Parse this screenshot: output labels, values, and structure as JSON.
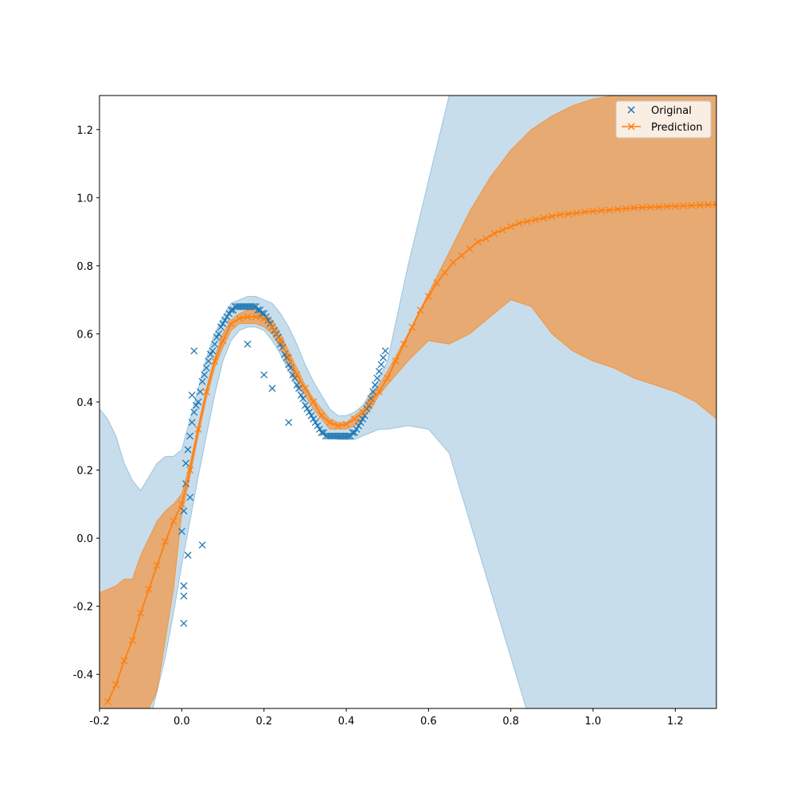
{
  "chart_data": {
    "type": "scatter",
    "title": "",
    "xlabel": "",
    "ylabel": "",
    "xlim": [
      -0.2,
      1.3
    ],
    "ylim": [
      -0.5,
      1.3
    ],
    "xticks": [
      -0.2,
      0.0,
      0.2,
      0.4,
      0.6,
      0.8,
      1.0,
      1.2
    ],
    "yticks": [
      -0.4,
      -0.2,
      0.0,
      0.2,
      0.4,
      0.6,
      0.8,
      1.0,
      1.2
    ],
    "grid": false,
    "legend_position": "top-right",
    "colors": {
      "original": "#1f77b4",
      "prediction": "#ff7f0e",
      "band_outer": "#1f77b4",
      "band_inner": "#ff7f0e"
    },
    "legend": [
      "Original",
      "Prediction"
    ],
    "series": [
      {
        "name": "Original",
        "kind": "scatter",
        "marker": "x",
        "x": [
          0.0,
          0.005,
          0.01,
          0.01,
          0.015,
          0.02,
          0.02,
          0.025,
          0.03,
          0.035,
          0.04,
          0.045,
          0.05,
          0.055,
          0.06,
          0.065,
          0.07,
          0.075,
          0.08,
          0.085,
          0.09,
          0.095,
          0.1,
          0.105,
          0.11,
          0.115,
          0.12,
          0.125,
          0.13,
          0.135,
          0.14,
          0.145,
          0.15,
          0.155,
          0.16,
          0.165,
          0.17,
          0.175,
          0.18,
          0.185,
          0.19,
          0.195,
          0.2,
          0.205,
          0.21,
          0.215,
          0.22,
          0.225,
          0.23,
          0.235,
          0.24,
          0.245,
          0.25,
          0.255,
          0.26,
          0.265,
          0.27,
          0.275,
          0.28,
          0.285,
          0.29,
          0.295,
          0.3,
          0.305,
          0.31,
          0.315,
          0.32,
          0.325,
          0.33,
          0.335,
          0.34,
          0.345,
          0.35,
          0.355,
          0.36,
          0.365,
          0.37,
          0.375,
          0.38,
          0.385,
          0.39,
          0.395,
          0.4,
          0.405,
          0.41,
          0.415,
          0.42,
          0.425,
          0.43,
          0.435,
          0.44,
          0.445,
          0.45,
          0.455,
          0.46,
          0.465,
          0.47,
          0.475,
          0.48,
          0.485,
          0.49,
          0.495,
          0.005,
          0.005,
          0.015,
          0.005,
          0.05,
          0.03,
          0.025,
          0.2,
          0.22,
          0.16,
          0.26
        ],
        "y": [
          0.02,
          0.08,
          0.16,
          0.22,
          0.26,
          0.3,
          0.12,
          0.34,
          0.37,
          0.39,
          0.4,
          0.43,
          0.46,
          0.48,
          0.5,
          0.52,
          0.54,
          0.55,
          0.57,
          0.59,
          0.6,
          0.62,
          0.63,
          0.64,
          0.65,
          0.66,
          0.67,
          0.67,
          0.68,
          0.68,
          0.68,
          0.68,
          0.68,
          0.68,
          0.68,
          0.68,
          0.68,
          0.68,
          0.68,
          0.67,
          0.67,
          0.66,
          0.66,
          0.65,
          0.64,
          0.63,
          0.62,
          0.61,
          0.6,
          0.59,
          0.57,
          0.56,
          0.54,
          0.53,
          0.51,
          0.5,
          0.48,
          0.47,
          0.45,
          0.44,
          0.42,
          0.41,
          0.39,
          0.38,
          0.37,
          0.36,
          0.35,
          0.34,
          0.33,
          0.32,
          0.31,
          0.31,
          0.3,
          0.3,
          0.3,
          0.3,
          0.3,
          0.3,
          0.3,
          0.3,
          0.3,
          0.3,
          0.3,
          0.3,
          0.3,
          0.31,
          0.31,
          0.32,
          0.33,
          0.34,
          0.35,
          0.36,
          0.38,
          0.39,
          0.41,
          0.43,
          0.45,
          0.47,
          0.49,
          0.51,
          0.53,
          0.55,
          -0.14,
          -0.25,
          -0.05,
          -0.17,
          -0.02,
          0.55,
          0.42,
          0.48,
          0.44,
          0.57,
          0.34
        ]
      },
      {
        "name": "Prediction",
        "kind": "line",
        "marker": "x",
        "x": [
          -0.18,
          -0.16,
          -0.14,
          -0.12,
          -0.1,
          -0.08,
          -0.06,
          -0.04,
          -0.02,
          0.0,
          0.02,
          0.04,
          0.06,
          0.08,
          0.1,
          0.12,
          0.14,
          0.16,
          0.18,
          0.2,
          0.22,
          0.24,
          0.26,
          0.28,
          0.3,
          0.32,
          0.34,
          0.36,
          0.38,
          0.4,
          0.42,
          0.44,
          0.46,
          0.48,
          0.5,
          0.52,
          0.54,
          0.56,
          0.58,
          0.6,
          0.62,
          0.64,
          0.66,
          0.68,
          0.7,
          0.72,
          0.74,
          0.76,
          0.78,
          0.8,
          0.82,
          0.84,
          0.86,
          0.88,
          0.9,
          0.92,
          0.94,
          0.96,
          0.98,
          1.0,
          1.02,
          1.04,
          1.06,
          1.08,
          1.1,
          1.12,
          1.14,
          1.16,
          1.18,
          1.2,
          1.22,
          1.24,
          1.26,
          1.28,
          1.3
        ],
        "y": [
          -0.48,
          -0.43,
          -0.36,
          -0.3,
          -0.22,
          -0.15,
          -0.08,
          -0.01,
          0.05,
          0.1,
          0.2,
          0.32,
          0.43,
          0.52,
          0.58,
          0.63,
          0.645,
          0.65,
          0.65,
          0.645,
          0.62,
          0.58,
          0.53,
          0.48,
          0.44,
          0.4,
          0.36,
          0.34,
          0.33,
          0.335,
          0.35,
          0.37,
          0.4,
          0.43,
          0.47,
          0.52,
          0.57,
          0.62,
          0.67,
          0.71,
          0.75,
          0.78,
          0.81,
          0.83,
          0.85,
          0.87,
          0.88,
          0.895,
          0.905,
          0.915,
          0.925,
          0.93,
          0.935,
          0.94,
          0.945,
          0.95,
          0.952,
          0.955,
          0.958,
          0.96,
          0.962,
          0.964,
          0.966,
          0.968,
          0.97,
          0.971,
          0.972,
          0.973,
          0.974,
          0.975,
          0.976,
          0.977,
          0.978,
          0.979,
          0.98
        ]
      },
      {
        "name": "outer_band",
        "kind": "band",
        "x": [
          -0.2,
          -0.18,
          -0.16,
          -0.14,
          -0.12,
          -0.1,
          -0.08,
          -0.06,
          -0.04,
          -0.02,
          0.0,
          0.02,
          0.04,
          0.06,
          0.08,
          0.1,
          0.12,
          0.14,
          0.16,
          0.18,
          0.2,
          0.22,
          0.24,
          0.26,
          0.28,
          0.3,
          0.32,
          0.34,
          0.36,
          0.38,
          0.4,
          0.42,
          0.44,
          0.46,
          0.48,
          0.5,
          0.55,
          0.6,
          0.65,
          0.7,
          0.75,
          0.8,
          0.85,
          0.9,
          0.95,
          1.0,
          1.05,
          1.1,
          1.15,
          1.2,
          1.25,
          1.3
        ],
        "upper": [
          0.38,
          0.35,
          0.3,
          0.22,
          0.17,
          0.14,
          0.18,
          0.22,
          0.24,
          0.24,
          0.26,
          0.35,
          0.44,
          0.53,
          0.6,
          0.65,
          0.69,
          0.7,
          0.71,
          0.71,
          0.7,
          0.69,
          0.66,
          0.62,
          0.57,
          0.51,
          0.46,
          0.42,
          0.38,
          0.36,
          0.36,
          0.37,
          0.39,
          0.43,
          0.47,
          0.52,
          0.8,
          1.05,
          1.3,
          1.4,
          1.45,
          1.45,
          1.42,
          1.4,
          1.38,
          1.35,
          1.32,
          1.3,
          1.3,
          1.3,
          1.3,
          1.3
        ],
        "lower": [
          -0.6,
          -0.6,
          -0.6,
          -0.6,
          -0.6,
          -0.6,
          -0.55,
          -0.45,
          -0.35,
          -0.22,
          -0.08,
          0.05,
          0.18,
          0.3,
          0.42,
          0.52,
          0.58,
          0.61,
          0.62,
          0.62,
          0.61,
          0.58,
          0.54,
          0.49,
          0.44,
          0.39,
          0.35,
          0.32,
          0.3,
          0.29,
          0.29,
          0.29,
          0.3,
          0.31,
          0.32,
          0.32,
          0.33,
          0.32,
          0.25,
          0.05,
          -0.15,
          -0.35,
          -0.55,
          -0.6,
          -0.6,
          -0.6,
          -0.6,
          -0.6,
          -0.6,
          -0.6,
          -0.6,
          -0.6
        ]
      },
      {
        "name": "inner_band",
        "kind": "band",
        "x": [
          -0.2,
          -0.18,
          -0.16,
          -0.14,
          -0.12,
          -0.1,
          -0.08,
          -0.06,
          -0.04,
          -0.02,
          0.0,
          0.02,
          0.04,
          0.06,
          0.08,
          0.1,
          0.12,
          0.14,
          0.16,
          0.18,
          0.2,
          0.22,
          0.24,
          0.26,
          0.28,
          0.3,
          0.32,
          0.34,
          0.36,
          0.38,
          0.4,
          0.42,
          0.44,
          0.46,
          0.48,
          0.5,
          0.55,
          0.6,
          0.65,
          0.7,
          0.75,
          0.8,
          0.85,
          0.9,
          0.95,
          1.0,
          1.05,
          1.1,
          1.15,
          1.2,
          1.25,
          1.3
        ],
        "upper": [
          -0.16,
          -0.15,
          -0.14,
          -0.12,
          -0.12,
          -0.05,
          0.0,
          0.05,
          0.08,
          0.1,
          0.13,
          0.22,
          0.33,
          0.44,
          0.53,
          0.6,
          0.64,
          0.66,
          0.67,
          0.67,
          0.66,
          0.64,
          0.6,
          0.55,
          0.5,
          0.45,
          0.41,
          0.38,
          0.35,
          0.34,
          0.34,
          0.36,
          0.38,
          0.42,
          0.45,
          0.49,
          0.6,
          0.72,
          0.84,
          0.96,
          1.06,
          1.14,
          1.2,
          1.24,
          1.27,
          1.29,
          1.3,
          1.3,
          1.3,
          1.3,
          1.3,
          1.3
        ],
        "lower": [
          -0.5,
          -0.5,
          -0.5,
          -0.5,
          -0.5,
          -0.5,
          -0.5,
          -0.45,
          -0.3,
          -0.15,
          0.07,
          0.18,
          0.3,
          0.41,
          0.5,
          0.56,
          0.61,
          0.63,
          0.63,
          0.63,
          0.62,
          0.6,
          0.56,
          0.51,
          0.46,
          0.42,
          0.38,
          0.35,
          0.32,
          0.32,
          0.32,
          0.33,
          0.35,
          0.38,
          0.42,
          0.45,
          0.52,
          0.58,
          0.57,
          0.6,
          0.65,
          0.7,
          0.68,
          0.6,
          0.55,
          0.52,
          0.5,
          0.47,
          0.45,
          0.43,
          0.4,
          0.35
        ]
      }
    ]
  }
}
